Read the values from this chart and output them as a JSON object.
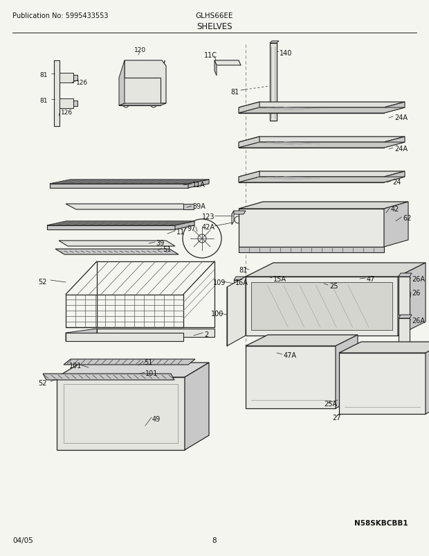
{
  "title": "SHELVES",
  "model": "GLHS66EE",
  "pub_no": "Publication No: 5995433553",
  "date": "04/05",
  "page": "8",
  "watermark": "N58SKBCBB1",
  "bg_color": "#f5f5f0",
  "text_color": "#111111",
  "line_color": "#222222",
  "gray_fill": "#c8c8c8",
  "light_fill": "#e5e5e0"
}
